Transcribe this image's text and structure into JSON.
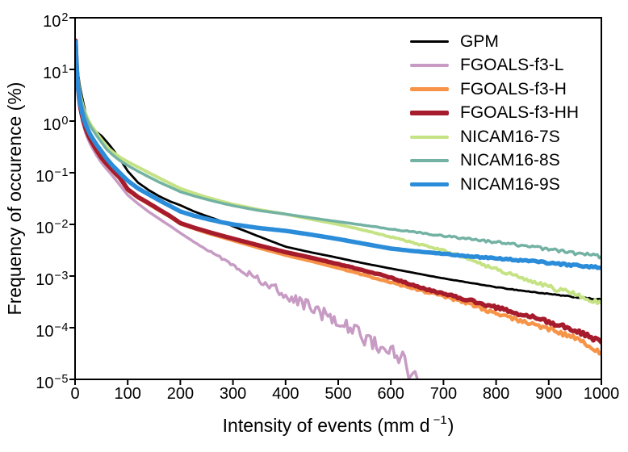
{
  "chart_data": {
    "type": "line",
    "title": "",
    "xlabel": "Intensity of events (mm d−1)",
    "xlabel_parts": {
      "prefix": "Intensity of events (mm d",
      "sup": "−1",
      "suffix": ")"
    },
    "ylabel": "Frequency of occurence (%)",
    "background": "#ffffff",
    "frame_color": "#000000",
    "legend_position": "upper right",
    "x_axis": {
      "min": 0,
      "max": 1000,
      "ticks": [
        0,
        100,
        200,
        300,
        400,
        500,
        600,
        700,
        800,
        900,
        1000
      ]
    },
    "y_axis": {
      "scale": "log",
      "min": 1e-05,
      "max": 100,
      "tick_base": "10",
      "tick_exponents": [
        2,
        1,
        0,
        -1,
        -2,
        -3,
        -4,
        -5
      ]
    },
    "series": [
      {
        "name": "GPM",
        "color": "#000000",
        "line_width": 2.8,
        "legend_swatch_height": 3.2,
        "noise": {
          "start": 650,
          "amp": 0.012
        },
        "points": [
          [
            1,
            33
          ],
          [
            2,
            24
          ],
          [
            3,
            18
          ],
          [
            4,
            13
          ],
          [
            6,
            8.0
          ],
          [
            8,
            5.6
          ],
          [
            10,
            4.2
          ],
          [
            13,
            3.0
          ],
          [
            16,
            2.2
          ],
          [
            20,
            1.45
          ],
          [
            25,
            1.08
          ],
          [
            30,
            0.85
          ],
          [
            40,
            0.62
          ],
          [
            50,
            0.52
          ],
          [
            60,
            0.4
          ],
          [
            70,
            0.3
          ],
          [
            85,
            0.185
          ],
          [
            100,
            0.108
          ],
          [
            120,
            0.064
          ],
          [
            140,
            0.046
          ],
          [
            160,
            0.035
          ],
          [
            180,
            0.028
          ],
          [
            200,
            0.0235
          ],
          [
            225,
            0.018
          ],
          [
            250,
            0.0145
          ],
          [
            275,
            0.0118
          ],
          [
            300,
            0.0092
          ],
          [
            350,
            0.0058
          ],
          [
            400,
            0.0037
          ],
          [
            450,
            0.00285
          ],
          [
            500,
            0.00225
          ],
          [
            550,
            0.00175
          ],
          [
            600,
            0.0014
          ],
          [
            650,
            0.00112
          ],
          [
            700,
            0.0009
          ],
          [
            750,
            0.00074
          ],
          [
            800,
            0.00061
          ],
          [
            850,
            0.00052
          ],
          [
            900,
            0.00045
          ],
          [
            950,
            0.00039
          ],
          [
            1000,
            0.00035
          ]
        ]
      },
      {
        "name": "FGOALS-f3-L",
        "color": "#c79bc4",
        "line_width": 3.5,
        "legend_swatch_height": 3.6,
        "noise": {
          "start": 220,
          "amp": 0.24
        },
        "points": [
          [
            1,
            30
          ],
          [
            2,
            16
          ],
          [
            3,
            9.5
          ],
          [
            4,
            6.2
          ],
          [
            6,
            3.3
          ],
          [
            8,
            2.1
          ],
          [
            10,
            1.55
          ],
          [
            13,
            1.1
          ],
          [
            16,
            0.83
          ],
          [
            20,
            0.6
          ],
          [
            25,
            0.44
          ],
          [
            30,
            0.34
          ],
          [
            40,
            0.225
          ],
          [
            50,
            0.158
          ],
          [
            60,
            0.118
          ],
          [
            70,
            0.09
          ],
          [
            85,
            0.058
          ],
          [
            100,
            0.037
          ],
          [
            120,
            0.025
          ],
          [
            140,
            0.0175
          ],
          [
            160,
            0.0128
          ],
          [
            180,
            0.0094
          ],
          [
            200,
            0.0068
          ],
          [
            225,
            0.00465
          ],
          [
            250,
            0.0033
          ],
          [
            275,
            0.00235
          ],
          [
            300,
            0.00165
          ],
          [
            350,
            0.00085
          ],
          [
            400,
            0.00045
          ],
          [
            450,
            0.000235
          ],
          [
            500,
            0.000125
          ],
          [
            550,
            6.6e-05
          ],
          [
            600,
            3.5e-05
          ],
          [
            630,
            2e-05
          ],
          [
            650,
            1.05e-05
          ]
        ]
      },
      {
        "name": "FGOALS-f3-H",
        "color": "#f79447",
        "line_width": 4.5,
        "legend_swatch_height": 4.6,
        "noise": {
          "start": 450,
          "amp": 0.05
        },
        "points": [
          [
            1,
            36
          ],
          [
            2,
            20
          ],
          [
            3,
            12
          ],
          [
            4,
            8.0
          ],
          [
            6,
            4.2
          ],
          [
            8,
            2.75
          ],
          [
            10,
            1.95
          ],
          [
            13,
            1.35
          ],
          [
            16,
            1.0
          ],
          [
            20,
            0.7
          ],
          [
            25,
            0.51
          ],
          [
            30,
            0.405
          ],
          [
            40,
            0.27
          ],
          [
            50,
            0.188
          ],
          [
            60,
            0.143
          ],
          [
            70,
            0.111
          ],
          [
            85,
            0.077
          ],
          [
            100,
            0.046
          ],
          [
            120,
            0.0325
          ],
          [
            140,
            0.0248
          ],
          [
            160,
            0.0186
          ],
          [
            180,
            0.0141
          ],
          [
            200,
            0.0103
          ],
          [
            225,
            0.0084
          ],
          [
            250,
            0.0069
          ],
          [
            275,
            0.0058
          ],
          [
            300,
            0.0049
          ],
          [
            350,
            0.0035
          ],
          [
            400,
            0.00255
          ],
          [
            450,
            0.00193
          ],
          [
            500,
            0.00143
          ],
          [
            550,
            0.00104
          ],
          [
            600,
            0.00075
          ],
          [
            650,
            0.00055
          ],
          [
            700,
            0.0004
          ],
          [
            750,
            0.00029
          ],
          [
            800,
            0.000185
          ],
          [
            850,
            0.000133
          ],
          [
            900,
            9.5e-05
          ],
          [
            950,
            6.4e-05
          ],
          [
            1000,
            3.3e-05
          ]
        ]
      },
      {
        "name": "FGOALS-f3-HH",
        "color": "#a61c2c",
        "line_width": 5.5,
        "legend_swatch_height": 5.6,
        "noise": {
          "start": 450,
          "amp": 0.045
        },
        "points": [
          [
            1,
            36
          ],
          [
            2,
            20
          ],
          [
            3,
            12
          ],
          [
            4,
            7.8
          ],
          [
            6,
            4.0
          ],
          [
            8,
            2.6
          ],
          [
            10,
            1.85
          ],
          [
            13,
            1.3
          ],
          [
            16,
            0.98
          ],
          [
            20,
            0.72
          ],
          [
            25,
            0.53
          ],
          [
            30,
            0.42
          ],
          [
            40,
            0.28
          ],
          [
            50,
            0.195
          ],
          [
            60,
            0.148
          ],
          [
            70,
            0.115
          ],
          [
            85,
            0.08
          ],
          [
            100,
            0.048
          ],
          [
            120,
            0.0337
          ],
          [
            140,
            0.0257
          ],
          [
            160,
            0.0193
          ],
          [
            180,
            0.0146
          ],
          [
            200,
            0.0106
          ],
          [
            225,
            0.0087
          ],
          [
            250,
            0.0073
          ],
          [
            275,
            0.0062
          ],
          [
            300,
            0.0053
          ],
          [
            350,
            0.0039
          ],
          [
            400,
            0.0029
          ],
          [
            450,
            0.00225
          ],
          [
            500,
            0.0017
          ],
          [
            550,
            0.00128
          ],
          [
            600,
            0.00094
          ],
          [
            650,
            0.00062
          ],
          [
            700,
            0.00046
          ],
          [
            750,
            0.00034
          ],
          [
            800,
            0.000245
          ],
          [
            850,
            0.00018
          ],
          [
            900,
            0.00013
          ],
          [
            950,
            9e-05
          ],
          [
            1000,
            5.2e-05
          ]
        ]
      },
      {
        "name": "NICAM16-7S",
        "color": "#c5e384",
        "line_width": 4.0,
        "legend_swatch_height": 4.0,
        "noise": {
          "start": 500,
          "amp": 0.055
        },
        "points": [
          [
            1,
            30
          ],
          [
            2,
            19
          ],
          [
            3,
            13
          ],
          [
            4,
            9.5
          ],
          [
            6,
            6.0
          ],
          [
            8,
            4.2
          ],
          [
            10,
            3.2
          ],
          [
            13,
            2.35
          ],
          [
            16,
            1.8
          ],
          [
            20,
            1.38
          ],
          [
            25,
            1.05
          ],
          [
            30,
            0.85
          ],
          [
            40,
            0.6
          ],
          [
            50,
            0.44
          ],
          [
            60,
            0.32
          ],
          [
            70,
            0.26
          ],
          [
            85,
            0.2
          ],
          [
            100,
            0.163
          ],
          [
            120,
            0.128
          ],
          [
            140,
            0.1
          ],
          [
            160,
            0.079
          ],
          [
            180,
            0.0625
          ],
          [
            200,
            0.0495
          ],
          [
            225,
            0.0405
          ],
          [
            250,
            0.0335
          ],
          [
            275,
            0.0285
          ],
          [
            300,
            0.0245
          ],
          [
            350,
            0.0192
          ],
          [
            400,
            0.0158
          ],
          [
            450,
            0.0125
          ],
          [
            500,
            0.01
          ],
          [
            550,
            0.0077
          ],
          [
            600,
            0.0057
          ],
          [
            650,
            0.0042
          ],
          [
            700,
            0.0031
          ],
          [
            750,
            0.0021
          ],
          [
            800,
            0.00135
          ],
          [
            850,
            0.0009
          ],
          [
            900,
            0.00062
          ],
          [
            950,
            0.00044
          ],
          [
            1000,
            0.0003
          ]
        ]
      },
      {
        "name": "NICAM16-8S",
        "color": "#73b2a3",
        "line_width": 3.5,
        "legend_swatch_height": 3.6,
        "noise": {
          "start": 500,
          "amp": 0.04
        },
        "points": [
          [
            1,
            28
          ],
          [
            2,
            17
          ],
          [
            3,
            12
          ],
          [
            4,
            8.8
          ],
          [
            6,
            5.6
          ],
          [
            8,
            3.9
          ],
          [
            10,
            2.95
          ],
          [
            13,
            2.15
          ],
          [
            16,
            1.65
          ],
          [
            20,
            1.26
          ],
          [
            25,
            0.95
          ],
          [
            30,
            0.77
          ],
          [
            40,
            0.54
          ],
          [
            50,
            0.39
          ],
          [
            60,
            0.285
          ],
          [
            70,
            0.228
          ],
          [
            85,
            0.172
          ],
          [
            100,
            0.138
          ],
          [
            120,
            0.106
          ],
          [
            140,
            0.083
          ],
          [
            160,
            0.0655
          ],
          [
            180,
            0.053
          ],
          [
            200,
            0.0428
          ],
          [
            225,
            0.0358
          ],
          [
            250,
            0.0305
          ],
          [
            275,
            0.0263
          ],
          [
            300,
            0.023
          ],
          [
            350,
            0.0185
          ],
          [
            400,
            0.0158
          ],
          [
            450,
            0.0133
          ],
          [
            500,
            0.0113
          ],
          [
            550,
            0.0096
          ],
          [
            600,
            0.0081
          ],
          [
            650,
            0.007
          ],
          [
            700,
            0.006
          ],
          [
            750,
            0.0052
          ],
          [
            800,
            0.0045
          ],
          [
            850,
            0.0039
          ],
          [
            900,
            0.0033
          ],
          [
            950,
            0.0028
          ],
          [
            1000,
            0.0024
          ]
        ]
      },
      {
        "name": "NICAM16-9S",
        "color": "#2b8dd9",
        "line_width": 5.5,
        "legend_swatch_height": 5.4,
        "noise": {
          "start": 600,
          "amp": 0.025
        },
        "points": [
          [
            1,
            34
          ],
          [
            2,
            19
          ],
          [
            3,
            11
          ],
          [
            4,
            7.5
          ],
          [
            6,
            4.2
          ],
          [
            8,
            2.9
          ],
          [
            10,
            2.1
          ],
          [
            13,
            1.5
          ],
          [
            16,
            1.13
          ],
          [
            20,
            0.86
          ],
          [
            25,
            0.66
          ],
          [
            30,
            0.52
          ],
          [
            40,
            0.36
          ],
          [
            50,
            0.26
          ],
          [
            60,
            0.188
          ],
          [
            70,
            0.142
          ],
          [
            85,
            0.099
          ],
          [
            100,
            0.07
          ],
          [
            120,
            0.0495
          ],
          [
            140,
            0.038
          ],
          [
            160,
            0.0292
          ],
          [
            180,
            0.0228
          ],
          [
            200,
            0.0178
          ],
          [
            225,
            0.0148
          ],
          [
            250,
            0.0128
          ],
          [
            275,
            0.0112
          ],
          [
            300,
            0.01
          ],
          [
            350,
            0.0085
          ],
          [
            400,
            0.0075
          ],
          [
            450,
            0.0063
          ],
          [
            500,
            0.0052
          ],
          [
            550,
            0.0042
          ],
          [
            600,
            0.0034
          ],
          [
            650,
            0.003
          ],
          [
            700,
            0.0027
          ],
          [
            750,
            0.0024
          ],
          [
            800,
            0.0022
          ],
          [
            850,
            0.002
          ],
          [
            900,
            0.0018
          ],
          [
            950,
            0.0016
          ],
          [
            1000,
            0.00145
          ]
        ]
      }
    ]
  }
}
